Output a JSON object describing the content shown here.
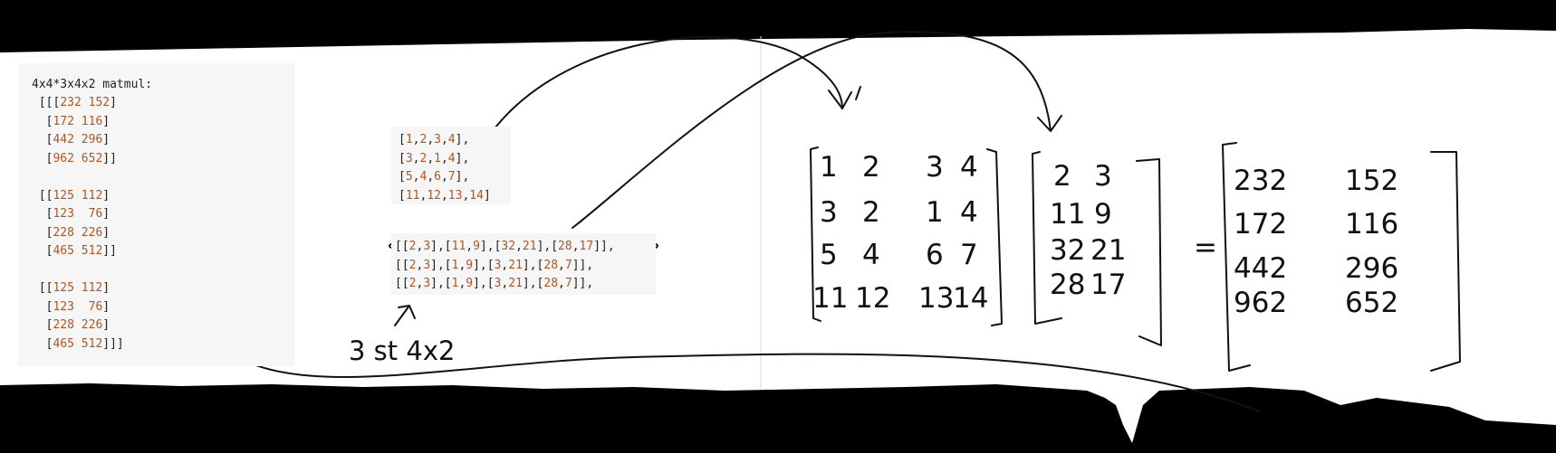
{
  "output_panel": {
    "header": "4x4*3x4x2 matmul:",
    "lines": [
      " [[[232 152]",
      "  [172 116]",
      "  [442 296]",
      "  [962 652]]",
      "",
      " [[125 112]",
      "  [123  76]",
      "  [228 226]",
      "  [465 512]]",
      "",
      " [[125 112]",
      "  [123  76]",
      "  [228 226]",
      "  [465 512]]]"
    ]
  },
  "matrix_a_code": {
    "lines": [
      "[1,2,3,4],",
      "[3,2,1,4],",
      "[5,4,6,7],",
      "[11,12,13,14]"
    ]
  },
  "matrix_b_code": {
    "lines": [
      "[[2,3],[11,9],[32,21],[28,17]],",
      "[[2,3],[1,9],[3,21],[28,7]],",
      "[[2,3],[1,9],[3,21],[28,7]],"
    ]
  },
  "annotations": {
    "first_label": "3 st  4x2",
    "equals": "="
  },
  "handwritten": {
    "matrix_a": [
      [
        "1",
        "2",
        "3",
        "4"
      ],
      [
        "3",
        "2",
        "1",
        "4"
      ],
      [
        "5",
        "4",
        "6",
        "7"
      ],
      [
        "11",
        "12",
        "13",
        "14"
      ]
    ],
    "matrix_b": [
      [
        "2",
        "3"
      ],
      [
        "11",
        "9"
      ],
      [
        "32",
        "21"
      ],
      [
        "28",
        "17"
      ]
    ],
    "result": [
      [
        "232",
        "152"
      ],
      [
        "172",
        "116"
      ],
      [
        "442",
        "296"
      ],
      [
        "962",
        "652"
      ]
    ]
  }
}
